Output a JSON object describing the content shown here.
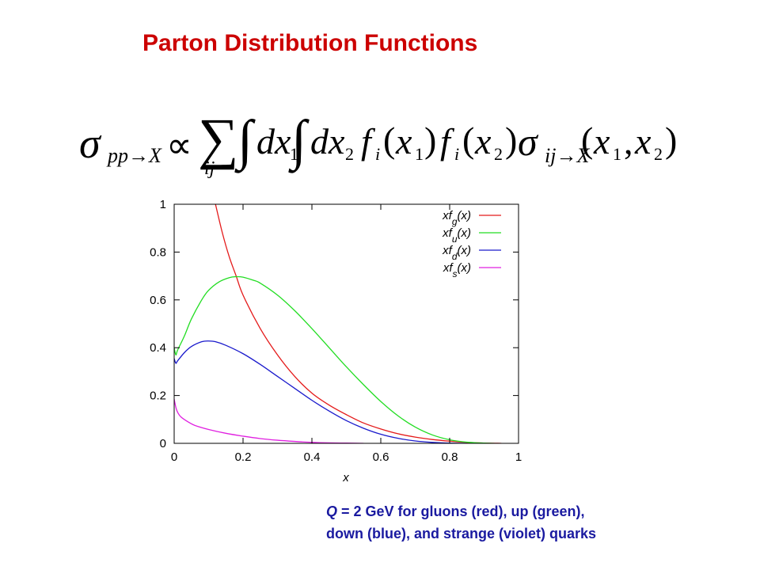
{
  "slide": {
    "title": "Parton Distribution Functions",
    "title_color": "#cc0000",
    "equation": {
      "sigma": "σ",
      "sigma_sub": "pp→X",
      "propto": "∝",
      "sum": "∑",
      "sum_sub": "ij",
      "integral": "∫",
      "dx": "dx",
      "sub1": "1",
      "sub2": "2",
      "f": "f",
      "i": "i",
      "x": "x",
      "open_paren": "(",
      "close_paren": ")",
      "comma": ",",
      "sigma_ij_sub": "ij→X"
    },
    "caption": {
      "q_symbol": "Q",
      "line1_rest": " = 2 GeV for gluons (red), up (green),",
      "line2": "down (blue),  and strange (violet) quarks",
      "color": "#1a1aa0"
    }
  },
  "chart_data": {
    "type": "line",
    "xlabel": "x",
    "ylabel": "",
    "xlim": [
      0,
      1
    ],
    "ylim": [
      0,
      1
    ],
    "x_ticks": [
      "0",
      "0.2",
      "0.4",
      "0.6",
      "0.8",
      "1"
    ],
    "y_ticks": [
      "0",
      "0.2",
      "0.4",
      "0.6",
      "0.8",
      "1"
    ],
    "grid": false,
    "legend_position": "top-right",
    "series": [
      {
        "name_prefix": "xf",
        "name_sub": "g",
        "name_suffix": "(x)",
        "color": "#e41a1a",
        "points": [
          [
            0.12,
            1.0
          ],
          [
            0.14,
            0.88
          ],
          [
            0.16,
            0.78
          ],
          [
            0.18,
            0.7
          ],
          [
            0.2,
            0.62
          ],
          [
            0.25,
            0.48
          ],
          [
            0.3,
            0.37
          ],
          [
            0.35,
            0.28
          ],
          [
            0.4,
            0.21
          ],
          [
            0.45,
            0.16
          ],
          [
            0.5,
            0.12
          ],
          [
            0.55,
            0.085
          ],
          [
            0.6,
            0.06
          ],
          [
            0.65,
            0.04
          ],
          [
            0.7,
            0.026
          ],
          [
            0.75,
            0.016
          ],
          [
            0.8,
            0.009
          ],
          [
            0.85,
            0.004
          ],
          [
            0.9,
            0.001
          ],
          [
            0.95,
            0.0
          ]
        ]
      },
      {
        "name_prefix": "xf",
        "name_sub": "u",
        "name_suffix": "(x)",
        "color": "#22dd22",
        "points": [
          [
            0.0,
            0.4
          ],
          [
            0.005,
            0.37
          ],
          [
            0.01,
            0.39
          ],
          [
            0.03,
            0.45
          ],
          [
            0.05,
            0.52
          ],
          [
            0.08,
            0.6
          ],
          [
            0.1,
            0.64
          ],
          [
            0.13,
            0.675
          ],
          [
            0.16,
            0.693
          ],
          [
            0.18,
            0.697
          ],
          [
            0.2,
            0.695
          ],
          [
            0.23,
            0.682
          ],
          [
            0.25,
            0.67
          ],
          [
            0.3,
            0.62
          ],
          [
            0.35,
            0.555
          ],
          [
            0.4,
            0.48
          ],
          [
            0.45,
            0.4
          ],
          [
            0.5,
            0.32
          ],
          [
            0.55,
            0.245
          ],
          [
            0.6,
            0.175
          ],
          [
            0.65,
            0.115
          ],
          [
            0.7,
            0.068
          ],
          [
            0.75,
            0.035
          ],
          [
            0.8,
            0.015
          ],
          [
            0.85,
            0.005
          ],
          [
            0.9,
            0.001
          ],
          [
            0.93,
            0.0
          ]
        ]
      },
      {
        "name_prefix": "xf",
        "name_sub": "d",
        "name_suffix": "(x)",
        "color": "#1a1acc",
        "points": [
          [
            0.0,
            0.355
          ],
          [
            0.005,
            0.335
          ],
          [
            0.01,
            0.345
          ],
          [
            0.03,
            0.38
          ],
          [
            0.05,
            0.405
          ],
          [
            0.08,
            0.425
          ],
          [
            0.1,
            0.428
          ],
          [
            0.12,
            0.425
          ],
          [
            0.15,
            0.41
          ],
          [
            0.2,
            0.375
          ],
          [
            0.25,
            0.33
          ],
          [
            0.3,
            0.28
          ],
          [
            0.35,
            0.23
          ],
          [
            0.4,
            0.18
          ],
          [
            0.45,
            0.135
          ],
          [
            0.5,
            0.095
          ],
          [
            0.55,
            0.063
          ],
          [
            0.6,
            0.038
          ],
          [
            0.65,
            0.021
          ],
          [
            0.7,
            0.01
          ],
          [
            0.75,
            0.004
          ],
          [
            0.8,
            0.001
          ],
          [
            0.85,
            0.0
          ]
        ]
      },
      {
        "name_prefix": "xf",
        "name_sub": "s",
        "name_suffix": "(x)",
        "color": "#e020e0",
        "points": [
          [
            0.0,
            0.185
          ],
          [
            0.005,
            0.15
          ],
          [
            0.01,
            0.13
          ],
          [
            0.02,
            0.11
          ],
          [
            0.04,
            0.09
          ],
          [
            0.06,
            0.075
          ],
          [
            0.1,
            0.058
          ],
          [
            0.15,
            0.042
          ],
          [
            0.2,
            0.03
          ],
          [
            0.25,
            0.02
          ],
          [
            0.3,
            0.013
          ],
          [
            0.35,
            0.008
          ],
          [
            0.4,
            0.004
          ],
          [
            0.45,
            0.002
          ],
          [
            0.5,
            0.001
          ],
          [
            0.55,
            0.0
          ]
        ]
      }
    ]
  }
}
